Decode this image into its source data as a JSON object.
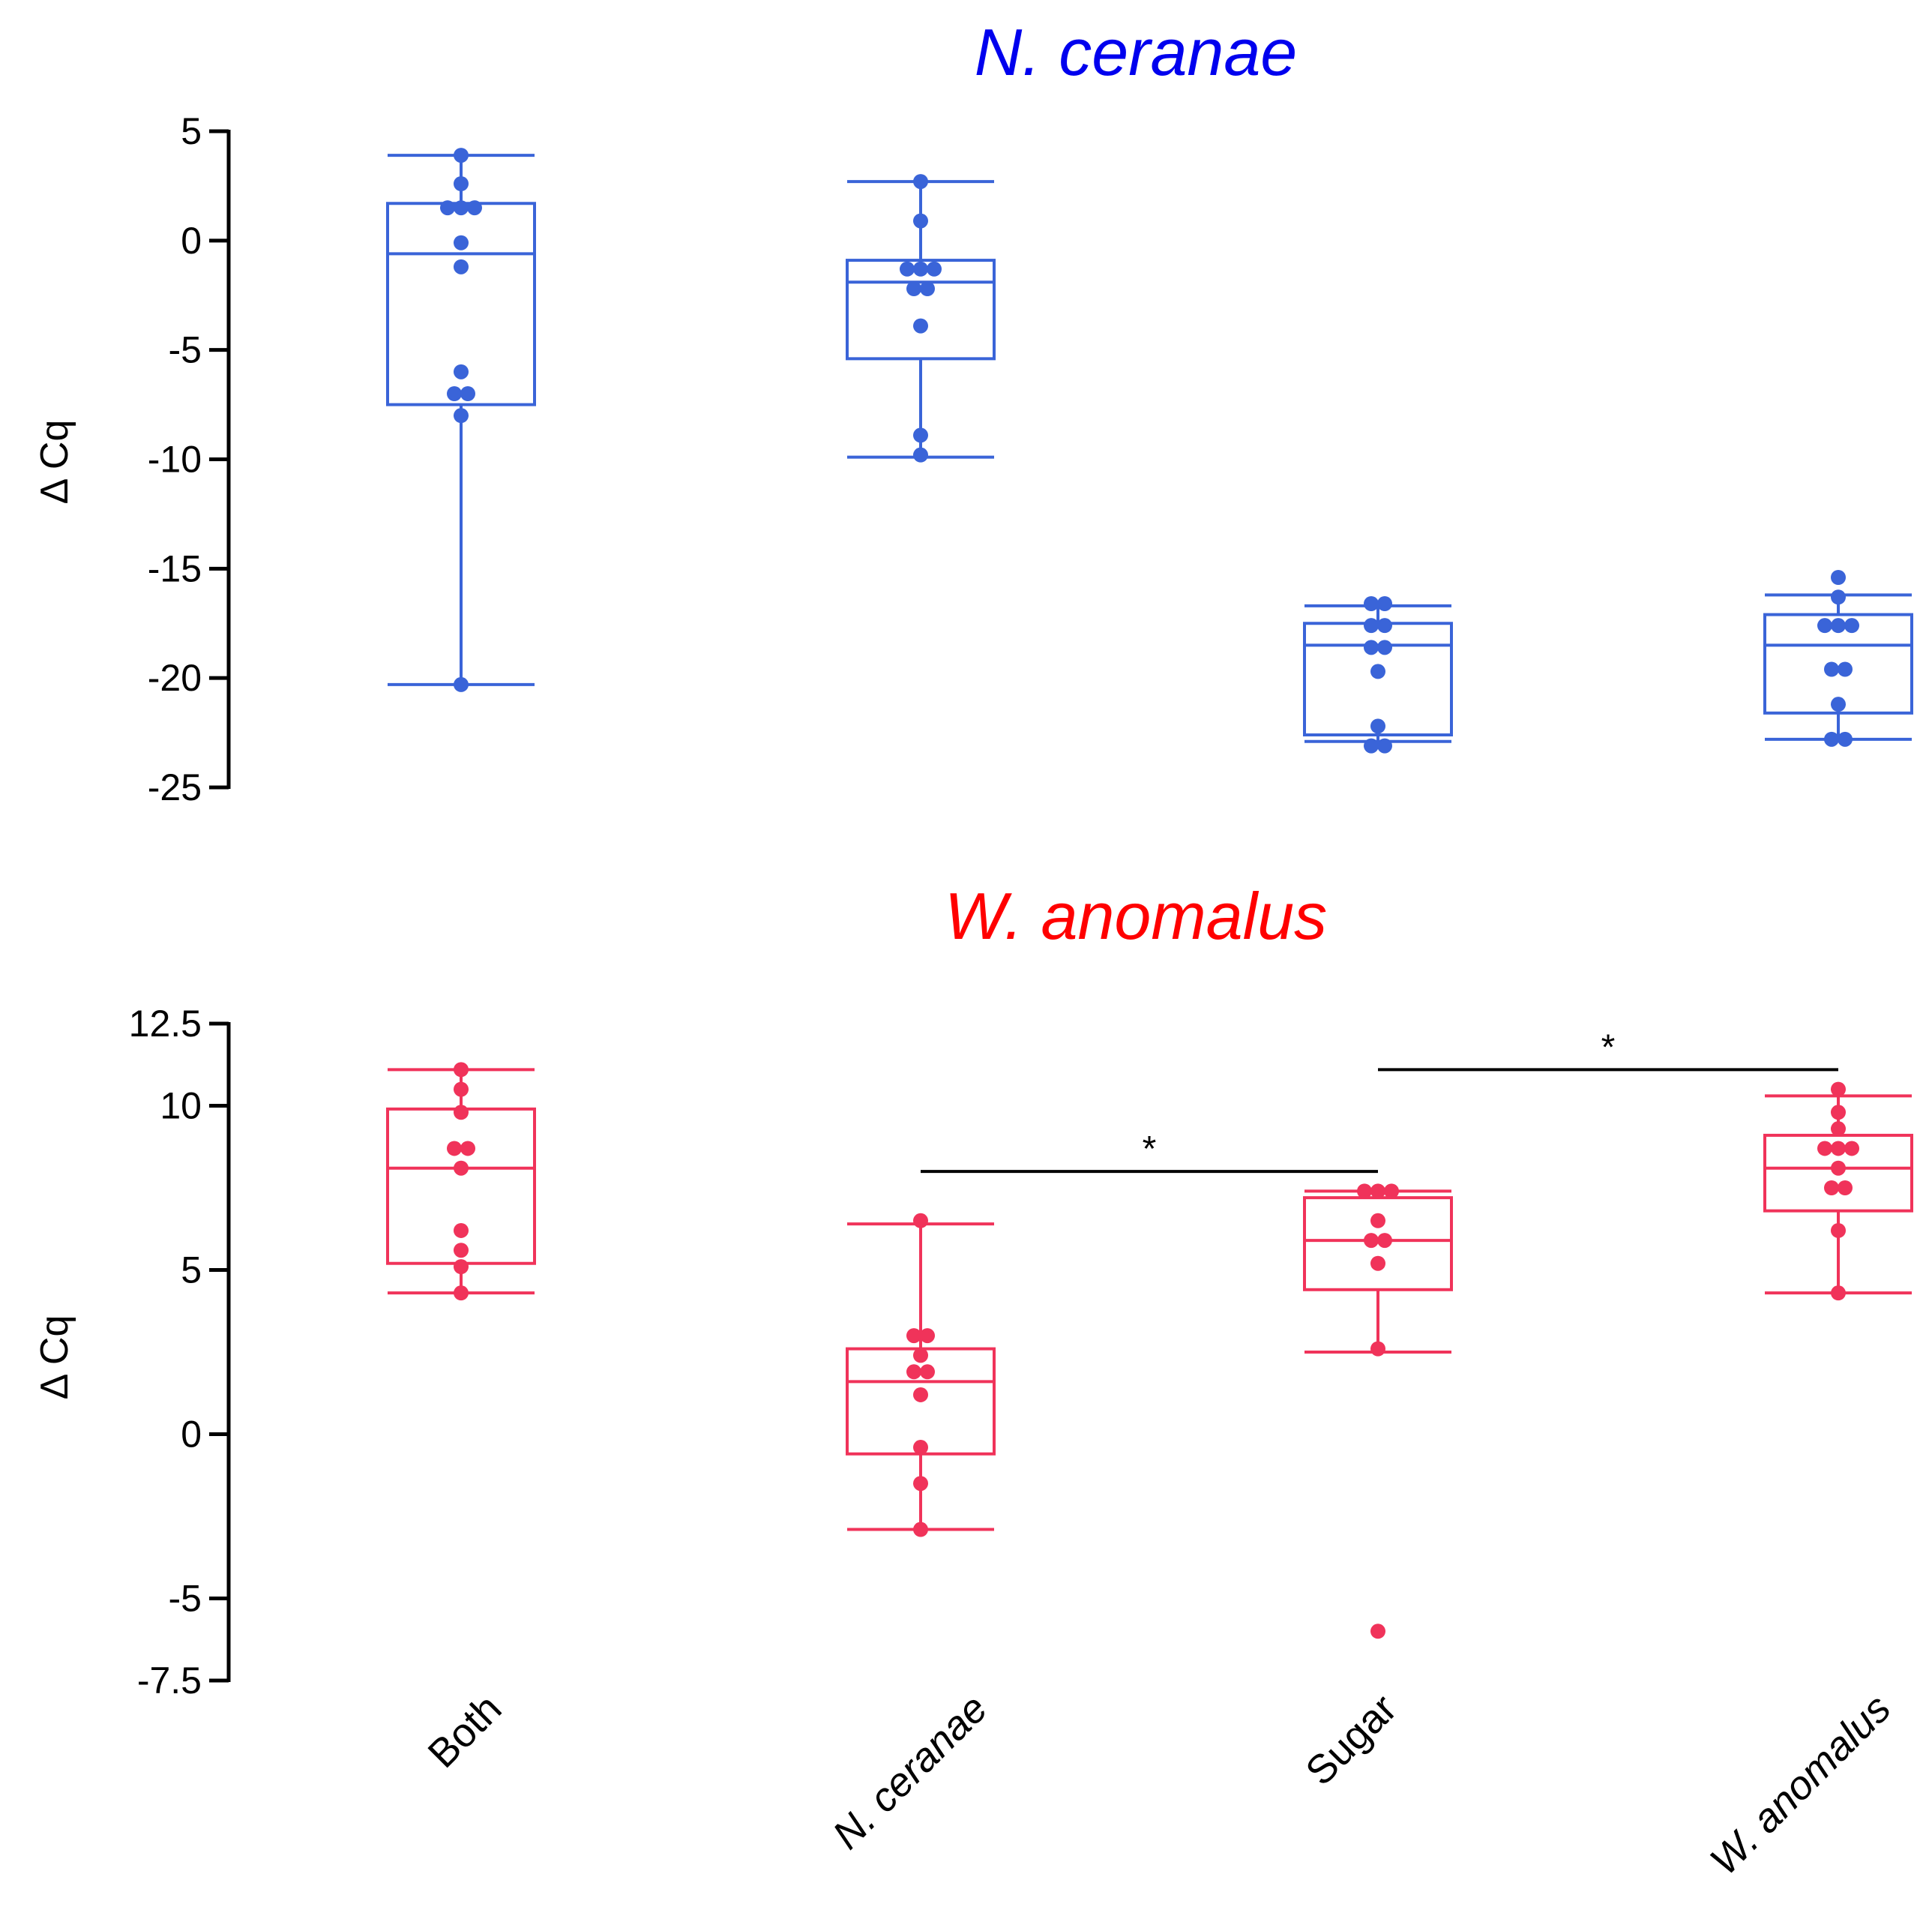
{
  "chart_data": [
    {
      "type": "box",
      "title": "N. ceranae",
      "title_color": "#0000ee",
      "box_color": "#3a64d8",
      "ylabel": "Δ Cq",
      "xlabel": "",
      "ylim": [
        -25,
        5
      ],
      "yticks": [
        5,
        0,
        -5,
        -10,
        -15,
        -20,
        -25
      ],
      "ytick_labels": [
        "5",
        "0",
        "-5",
        "-10",
        "-15",
        "-20",
        "-25"
      ],
      "categories": [
        "Both",
        "N. ceranae",
        "Sugar",
        "W. anomalus"
      ],
      "boxes": [
        {
          "name": "Both",
          "whisker_low": -20.3,
          "q1": -7.5,
          "median": -0.6,
          "q3": 1.7,
          "whisker_high": 3.9
        },
        {
          "name": "N. ceranae",
          "whisker_low": -9.9,
          "q1": -5.4,
          "median": -1.9,
          "q3": -0.9,
          "whisker_high": 2.7
        },
        {
          "name": "Sugar",
          "whisker_low": -22.9,
          "q1": -22.6,
          "median": -18.5,
          "q3": -17.5,
          "whisker_high": -16.7
        },
        {
          "name": "W. anomalus",
          "whisker_low": -22.8,
          "q1": -21.6,
          "median": -18.5,
          "q3": -17.1,
          "whisker_high": -16.2
        }
      ],
      "points": [
        [
          3.9,
          2.6,
          1.5,
          1.5,
          1.4,
          -0.1,
          -1.2,
          -6.0,
          -7.0,
          -7.3,
          -8.0,
          -20.3
        ],
        [
          2.7,
          0.9,
          -1.3,
          -1.3,
          -1.3,
          -2.2,
          -2.2,
          -3.9,
          -8.9,
          -9.8
        ],
        [
          -16.6,
          -16.6,
          -17.6,
          -17.6,
          -18.6,
          -18.6,
          -19.7,
          -22.2,
          -23.1,
          -23.1
        ],
        [
          -15.4,
          -16.3,
          -17.6,
          -17.6,
          -17.6,
          -19.6,
          -19.6,
          -21.2,
          -22.8,
          -22.8
        ]
      ],
      "significance": []
    },
    {
      "type": "box",
      "title": "W. anomalus",
      "title_color": "#ff0000",
      "box_color": "#f0335a",
      "ylabel": "Δ Cq",
      "xlabel": "",
      "ylim": [
        -7.5,
        12.5
      ],
      "yticks": [
        12.5,
        10,
        5,
        0,
        -5,
        -7.5
      ],
      "ytick_labels": [
        "12.5",
        "10",
        "5",
        "0",
        "-5",
        "-7.5"
      ],
      "categories": [
        "Both",
        "N. ceranae",
        "Sugar",
        "W. anomalus"
      ],
      "boxes": [
        {
          "name": "Both",
          "whisker_low": 4.3,
          "q1": 5.2,
          "median": 8.1,
          "q3": 9.9,
          "whisker_high": 11.1
        },
        {
          "name": "N. ceranae",
          "whisker_low": -2.9,
          "q1": -0.6,
          "median": 1.6,
          "q3": 2.6,
          "whisker_high": 6.4
        },
        {
          "name": "Sugar",
          "whisker_low": 2.5,
          "q1": 4.4,
          "median": 5.9,
          "q3": 7.2,
          "whisker_high": 7.4
        },
        {
          "name": "W. anomalus",
          "whisker_low": 4.3,
          "q1": 6.8,
          "median": 8.1,
          "q3": 9.1,
          "whisker_high": 10.3
        }
      ],
      "points": [
        [
          11.1,
          10.5,
          9.8,
          8.7,
          8.7,
          8.1,
          6.2,
          5.6,
          5.1,
          4.3
        ],
        [
          6.5,
          3.0,
          3.0,
          2.4,
          1.9,
          1.9,
          1.2,
          -0.4,
          -1.5,
          -2.9
        ],
        [
          7.4,
          7.4,
          7.4,
          6.5,
          5.9,
          5.9,
          5.2,
          2.6,
          -6.0
        ],
        [
          10.5,
          9.8,
          9.3,
          8.7,
          8.7,
          8.7,
          8.1,
          7.5,
          7.5,
          6.2,
          4.3
        ]
      ],
      "significance": [
        {
          "from": "N. ceranae",
          "to": "Sugar",
          "y": 8.0,
          "label": "*"
        },
        {
          "from": "Sugar",
          "to": "W. anomalus",
          "y": 11.1,
          "label": "*"
        }
      ]
    }
  ],
  "x_labels": [
    {
      "text": "Both",
      "italic": false
    },
    {
      "text": "N. ceranae",
      "italic": true
    },
    {
      "text": "Sugar",
      "italic": false
    },
    {
      "text": "W. anomalus",
      "italic": true
    }
  ]
}
